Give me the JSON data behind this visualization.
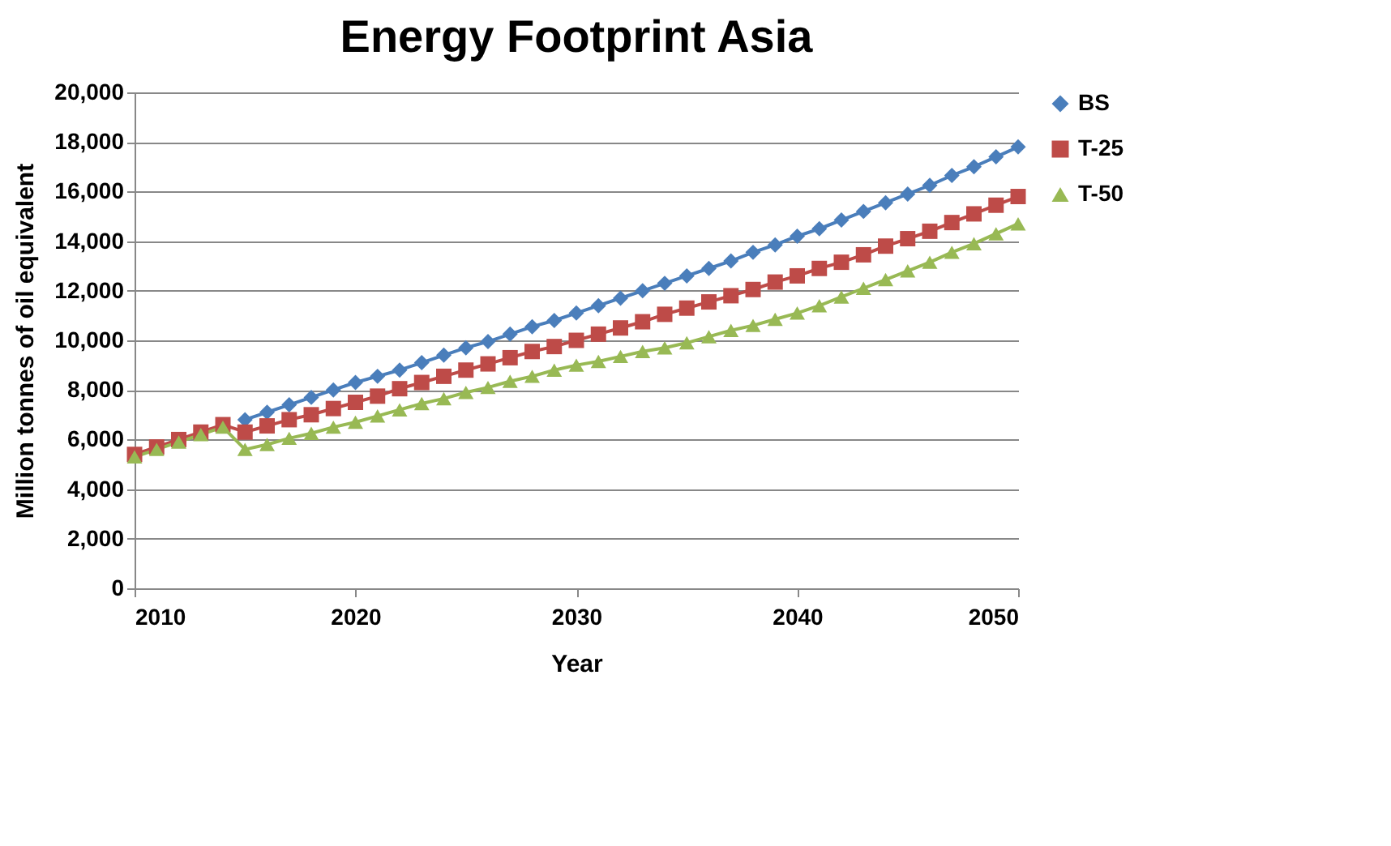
{
  "chart_data": {
    "type": "line",
    "title": "Energy Footprint Asia",
    "xlabel": "Year",
    "ylabel": "Million tonnes of oil equivalent",
    "x": [
      2010,
      2011,
      2012,
      2013,
      2014,
      2015,
      2016,
      2017,
      2018,
      2019,
      2020,
      2021,
      2022,
      2023,
      2024,
      2025,
      2026,
      2027,
      2028,
      2029,
      2030,
      2031,
      2032,
      2033,
      2034,
      2035,
      2036,
      2037,
      2038,
      2039,
      2040,
      2041,
      2042,
      2043,
      2044,
      2045,
      2046,
      2047,
      2048,
      2049,
      2050
    ],
    "series": [
      {
        "name": "BS",
        "color": "#4a7ebb",
        "marker": "diamond",
        "values": [
          null,
          null,
          null,
          null,
          null,
          6800,
          7100,
          7400,
          7700,
          8000,
          8300,
          8550,
          8800,
          9100,
          9400,
          9700,
          9950,
          10250,
          10550,
          10800,
          11100,
          11400,
          11700,
          12000,
          12300,
          12600,
          12900,
          13200,
          13550,
          13850,
          14200,
          14500,
          14850,
          15200,
          15550,
          15900,
          16250,
          16650,
          17000,
          17400,
          17800
        ]
      },
      {
        "name": "T-25",
        "color": "#be4b48",
        "marker": "square",
        "values": [
          5400,
          5700,
          6000,
          6300,
          6600,
          6300,
          6550,
          6800,
          7000,
          7250,
          7500,
          7750,
          8050,
          8300,
          8550,
          8800,
          9050,
          9300,
          9550,
          9750,
          10000,
          10250,
          10500,
          10750,
          11050,
          11300,
          11550,
          11800,
          12050,
          12350,
          12600,
          12900,
          13150,
          13450,
          13800,
          14100,
          14400,
          14750,
          15100,
          15450,
          15800
        ]
      },
      {
        "name": "T-50",
        "color": "#98b954",
        "marker": "triangle",
        "values": [
          5300,
          5600,
          5900,
          6200,
          6500,
          5600,
          5800,
          6050,
          6250,
          6500,
          6700,
          6950,
          7200,
          7450,
          7650,
          7900,
          8100,
          8350,
          8550,
          8800,
          9000,
          9150,
          9350,
          9550,
          9700,
          9900,
          10150,
          10400,
          10600,
          10850,
          11100,
          11400,
          11750,
          12100,
          12450,
          12800,
          13150,
          13550,
          13900,
          14300,
          14700
        ]
      }
    ],
    "xlim": [
      2010,
      2050
    ],
    "xticks": [
      2010,
      2020,
      2030,
      2040,
      2050
    ],
    "ylim": [
      0,
      20000
    ],
    "yticks": [
      0,
      {
        "value": 2000,
        "label": "2,000"
      },
      {
        "value": 4000,
        "label": "4,000"
      },
      {
        "value": 6000,
        "label": "6,000"
      },
      {
        "value": 8000,
        "label": "8,000"
      },
      {
        "value": 10000,
        "label": "10,000"
      },
      {
        "value": 12000,
        "label": "12,000"
      },
      {
        "value": 14000,
        "label": "14,000"
      },
      {
        "value": 16000,
        "label": "16,000"
      },
      {
        "value": 18000,
        "label": "18,000"
      },
      {
        "value": 20000,
        "label": "20,000"
      }
    ],
    "grid": "y",
    "legend": "right"
  }
}
